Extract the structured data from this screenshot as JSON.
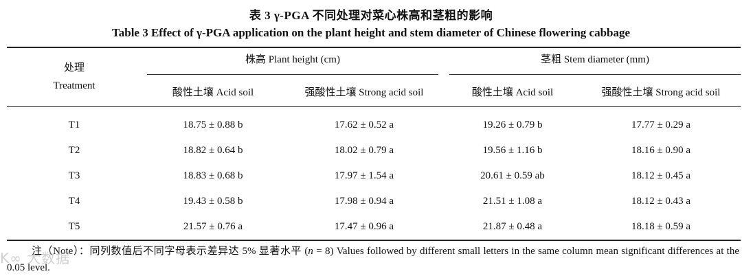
{
  "title_cn": "表 3  γ-PGA 不同处理对菜心株高和茎粗的影响",
  "title_en": "Table 3   Effect of γ-PGA application on the plant height and stem diameter of Chinese flowering cabbage",
  "header": {
    "treatment_cn": "处理",
    "treatment_en": "Treatment",
    "plant_height": "株高 Plant height (cm)",
    "stem_diameter": "茎粗 Stem diameter (mm)",
    "acid_soil": "酸性土壤 Acid soil",
    "strong_acid_soil": "强酸性土壤 Strong acid soil"
  },
  "rows": [
    {
      "treatment": "T1",
      "ph_acid": "18.75 ± 0.88 b",
      "ph_strong": "17.62 ± 0.52 a",
      "sd_acid": "19.26 ± 0.79 b",
      "sd_strong": "17.77 ± 0.29 a"
    },
    {
      "treatment": "T2",
      "ph_acid": "18.82 ± 0.64 b",
      "ph_strong": "18.02 ± 0.79 a",
      "sd_acid": "19.56 ± 1.16 b",
      "sd_strong": "18.16 ± 0.90 a"
    },
    {
      "treatment": "T3",
      "ph_acid": "18.83 ± 0.68 b",
      "ph_strong": "17.97 ± 1.54 a",
      "sd_acid": "20.61 ± 0.59 ab",
      "sd_strong": "18.12 ± 0.45 a"
    },
    {
      "treatment": "T4",
      "ph_acid": "19.43 ± 0.58 b",
      "ph_strong": "17.98 ± 0.94 a",
      "sd_acid": "21.51 ± 1.08 a",
      "sd_strong": "18.12 ± 0.43 a"
    },
    {
      "treatment": "T5",
      "ph_acid": "21.57 ± 0.76 a",
      "ph_strong": "17.47 ± 0.96 a",
      "sd_acid": "21.87 ± 0.48 a",
      "sd_strong": "18.18 ± 0.59 a"
    }
  ],
  "note": {
    "prefix": "注（Note）：同列数值后不同字母表示差异达 5% 显著水平 (",
    "n_var": "n",
    "middle": " = 8) Values followed by different small letters in the same column mean significant differences at the 0.05 level."
  },
  "watermark": "K∞ 大数据"
}
